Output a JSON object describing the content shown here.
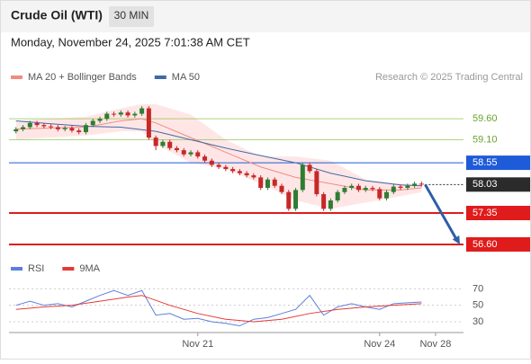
{
  "header": {
    "title": "Crude Oil (WTI)",
    "timeframe": "30 MIN",
    "datetime": "Monday, November 24, 2025 7:01:38 AM CET",
    "credit": "Research © 2025 Trading Central"
  },
  "chart_data": [
    {
      "type": "candlestick",
      "up_color": "#2e7d32",
      "down_color": "#c62828",
      "xlim": [
        -1,
        64
      ],
      "ylim": [
        56.32,
        60.29
      ],
      "xticks": [
        {
          "value": 26,
          "label": "Nov 21"
        },
        {
          "value": 52,
          "label": "Nov 24"
        },
        {
          "value": 60,
          "label": "Nov 28"
        }
      ],
      "open": [
        59.3,
        59.35,
        59.4,
        59.5,
        59.45,
        59.42,
        59.4,
        59.35,
        59.38,
        59.32,
        59.28,
        59.45,
        59.55,
        59.6,
        59.72,
        59.7,
        59.75,
        59.68,
        59.72,
        59.85,
        59.15,
        58.95,
        59.05,
        58.9,
        58.85,
        58.75,
        58.8,
        58.7,
        58.6,
        58.5,
        58.45,
        58.4,
        58.35,
        58.3,
        58.25,
        58.2,
        57.95,
        58.15,
        58.0,
        57.85,
        57.45,
        57.9,
        58.5,
        58.35,
        57.8,
        57.45,
        57.65,
        57.85,
        57.95,
        58.0,
        57.9,
        57.95,
        57.92,
        57.7,
        57.85,
        57.98,
        57.95,
        58.0,
        58.05
      ],
      "high": [
        59.4,
        59.45,
        59.55,
        59.55,
        59.5,
        59.47,
        59.45,
        59.43,
        59.43,
        59.37,
        59.5,
        59.6,
        59.65,
        59.77,
        59.77,
        59.8,
        59.8,
        59.77,
        59.9,
        59.9,
        59.2,
        59.1,
        59.1,
        58.95,
        58.9,
        58.85,
        58.85,
        58.75,
        58.65,
        58.55,
        58.5,
        58.45,
        58.4,
        58.35,
        58.3,
        58.25,
        58.2,
        58.2,
        58.05,
        57.9,
        57.95,
        58.55,
        58.55,
        58.4,
        57.85,
        57.7,
        57.9,
        58.0,
        58.05,
        58.05,
        58.0,
        58.0,
        57.97,
        57.9,
        58.03,
        58.03,
        58.05,
        58.1,
        58.1
      ],
      "low": [
        59.25,
        59.3,
        59.35,
        59.4,
        59.37,
        59.35,
        59.3,
        59.3,
        59.27,
        59.23,
        59.23,
        59.4,
        59.5,
        59.55,
        59.65,
        59.65,
        59.63,
        59.63,
        59.67,
        59.1,
        58.85,
        58.9,
        58.85,
        58.8,
        58.7,
        58.7,
        58.65,
        58.55,
        58.45,
        58.4,
        58.35,
        58.3,
        58.25,
        58.2,
        58.15,
        57.9,
        57.9,
        57.95,
        57.8,
        57.4,
        57.4,
        57.85,
        58.3,
        57.75,
        57.4,
        57.4,
        57.6,
        57.8,
        57.9,
        57.85,
        57.85,
        57.87,
        57.65,
        57.65,
        57.8,
        57.9,
        57.9,
        57.95,
        57.98
      ],
      "close": [
        59.35,
        59.4,
        59.5,
        59.45,
        59.42,
        59.4,
        59.35,
        59.38,
        59.32,
        59.28,
        59.45,
        59.55,
        59.6,
        59.72,
        59.7,
        59.75,
        59.68,
        59.72,
        59.85,
        59.15,
        58.95,
        59.05,
        58.9,
        58.85,
        58.75,
        58.8,
        58.7,
        58.6,
        58.5,
        58.45,
        58.4,
        58.35,
        58.3,
        58.25,
        58.2,
        57.95,
        58.15,
        58.0,
        57.85,
        57.45,
        57.9,
        58.5,
        58.35,
        57.8,
        57.45,
        57.65,
        57.85,
        57.95,
        58.0,
        57.9,
        57.95,
        57.92,
        57.7,
        57.85,
        57.98,
        57.95,
        58.0,
        58.05,
        58.03
      ],
      "series": [
        {
          "name": "MA 20 + Bollinger Bands",
          "color": "#f28b82",
          "band_color": "#ffd6d6",
          "x": [
            0,
            5,
            10,
            15,
            18,
            20,
            25,
            30,
            35,
            40,
            45,
            50,
            55,
            58
          ],
          "values": [
            59.35,
            59.38,
            59.4,
            59.55,
            59.6,
            59.5,
            59.15,
            58.8,
            58.45,
            58.2,
            58.05,
            57.9,
            57.9,
            57.95
          ],
          "band_upper": [
            59.55,
            59.6,
            59.65,
            59.85,
            59.95,
            59.95,
            59.7,
            59.1,
            58.7,
            58.7,
            58.6,
            58.15,
            58.05,
            58.05
          ],
          "band_lower": [
            59.1,
            59.15,
            59.2,
            59.3,
            59.3,
            59.0,
            58.55,
            58.4,
            58.05,
            57.65,
            57.45,
            57.6,
            57.75,
            57.85
          ]
        },
        {
          "name": "MA 50",
          "color": "#3f6aa6",
          "x": [
            0,
            5,
            10,
            15,
            20,
            25,
            30,
            35,
            40,
            45,
            50,
            55,
            58
          ],
          "values": [
            59.55,
            59.48,
            59.42,
            59.4,
            59.3,
            59.1,
            58.9,
            58.72,
            58.55,
            58.3,
            58.12,
            58.02,
            58.0
          ]
        }
      ],
      "levels": [
        {
          "value": 59.6,
          "label": "59.60",
          "color": "#8bc34a",
          "boxed": false,
          "style": "solid"
        },
        {
          "value": 59.1,
          "label": "59.10",
          "color": "#8bc34a",
          "boxed": false,
          "style": "solid"
        },
        {
          "value": 58.55,
          "label": "58.55",
          "color": "#1e5bd8",
          "boxed": true,
          "style": "solid"
        },
        {
          "value": 58.03,
          "label": "58.03",
          "color": "#2b2b2b",
          "boxed": true,
          "style": "dotted"
        },
        {
          "value": 57.35,
          "label": "57.35",
          "color": "#e01b1b",
          "boxed": true,
          "style": "solid"
        },
        {
          "value": 56.6,
          "label": "56.60",
          "color": "#e01b1b",
          "boxed": true,
          "style": "solid"
        }
      ]
    },
    {
      "type": "line",
      "xlim": [
        -1,
        64
      ],
      "ylim": [
        19,
        77
      ],
      "yticks": [
        70,
        50,
        30
      ],
      "series": [
        {
          "name": "RSI",
          "color": "#5b7fde",
          "x": [
            0,
            2,
            4,
            6,
            8,
            10,
            12,
            14,
            16,
            18,
            20,
            22,
            24,
            26,
            28,
            30,
            32,
            34,
            36,
            38,
            40,
            42,
            44,
            46,
            48,
            50,
            52,
            54,
            56,
            58
          ],
          "values": [
            50,
            55,
            50,
            52,
            48,
            55,
            62,
            68,
            62,
            68,
            38,
            40,
            33,
            34,
            30,
            28,
            25,
            33,
            35,
            40,
            45,
            62,
            38,
            48,
            52,
            48,
            45,
            52,
            53,
            54
          ]
        },
        {
          "name": "9MA",
          "color": "#e53935",
          "x": [
            0,
            4,
            8,
            12,
            16,
            18,
            22,
            26,
            30,
            34,
            38,
            42,
            46,
            50,
            54,
            58
          ],
          "values": [
            45,
            48,
            50,
            55,
            60,
            62,
            50,
            40,
            33,
            30,
            33,
            40,
            45,
            48,
            50,
            52
          ]
        }
      ]
    }
  ]
}
